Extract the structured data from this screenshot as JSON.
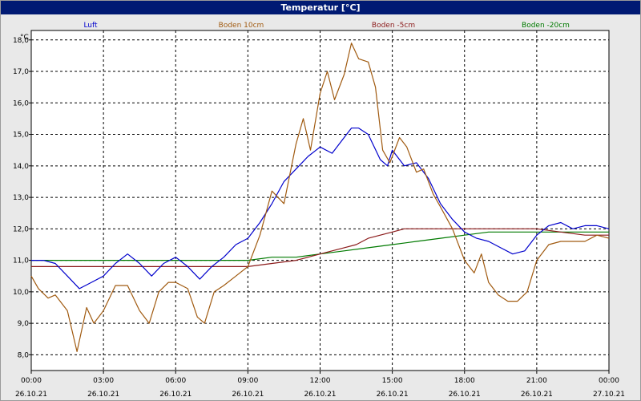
{
  "window": {
    "title": "Temperatur [°C]"
  },
  "chart_data": {
    "type": "line",
    "title": "Temperatur [°C]",
    "ylabel": "°C",
    "xlabel": "",
    "ylim": [
      7.5,
      18.3
    ],
    "xlim": [
      0,
      24
    ],
    "y_ticks": [
      "8,0",
      "9,0",
      "10,0",
      "11,0",
      "12,0",
      "13,0",
      "14,0",
      "15,0",
      "16,0",
      "17,0",
      "18,0"
    ],
    "y_tick_values": [
      8,
      9,
      10,
      11,
      12,
      13,
      14,
      15,
      16,
      17,
      18
    ],
    "x_tick_values": [
      0,
      3,
      6,
      9,
      12,
      15,
      18,
      21,
      24
    ],
    "x_ticks_time": [
      "00:00",
      "03:00",
      "06:00",
      "09:00",
      "12:00",
      "15:00",
      "18:00",
      "21:00",
      "00:00"
    ],
    "x_ticks_date": [
      "26.10.21",
      "26.10.21",
      "26.10.21",
      "26.10.21",
      "26.10.21",
      "26.10.21",
      "26.10.21",
      "26.10.21",
      "27.10.21"
    ],
    "grid": true,
    "legend_position": "top",
    "series": [
      {
        "name": "Luft",
        "color": "#0000cc",
        "x": [
          0,
          0.5,
          1,
          1.5,
          2,
          2.5,
          3,
          3.5,
          4,
          4.5,
          5,
          5.5,
          6,
          6.5,
          7,
          7.5,
          8,
          8.5,
          9,
          9.5,
          10,
          10.5,
          11,
          11.5,
          12,
          12.5,
          13,
          13.3,
          13.6,
          14,
          14.5,
          14.8,
          15,
          15.5,
          16,
          16.5,
          17,
          17.5,
          18,
          18.5,
          19,
          19.5,
          20,
          20.5,
          21,
          21.5,
          22,
          22.5,
          23,
          23.5,
          24
        ],
        "y": [
          11.0,
          11.0,
          10.9,
          10.5,
          10.1,
          10.3,
          10.5,
          10.9,
          11.2,
          10.9,
          10.5,
          10.9,
          11.1,
          10.8,
          10.4,
          10.8,
          11.1,
          11.5,
          11.7,
          12.2,
          12.8,
          13.5,
          13.9,
          14.3,
          14.6,
          14.4,
          14.9,
          15.2,
          15.2,
          15.0,
          14.2,
          14.0,
          14.5,
          14.0,
          14.1,
          13.6,
          12.8,
          12.3,
          11.9,
          11.7,
          11.6,
          11.4,
          11.2,
          11.3,
          11.8,
          12.1,
          12.2,
          12.0,
          12.1,
          12.1,
          12.0
        ]
      },
      {
        "name": "Boden 10cm",
        "color": "#a05a10",
        "x": [
          0,
          0.3,
          0.7,
          1,
          1.5,
          1.9,
          2.3,
          2.6,
          3,
          3.5,
          4,
          4.5,
          4.9,
          5.3,
          5.7,
          6,
          6.5,
          6.9,
          7.2,
          7.6,
          8,
          8.5,
          9,
          9.5,
          10,
          10.5,
          11,
          11.3,
          11.6,
          12,
          12.3,
          12.6,
          13,
          13.3,
          13.6,
          14,
          14.3,
          14.6,
          14.9,
          15.3,
          15.6,
          16,
          16.3,
          16.7,
          17,
          17.5,
          18,
          18.4,
          18.7,
          19,
          19.4,
          19.8,
          20.2,
          20.6,
          21,
          21.5,
          22,
          22.5,
          23,
          23.5,
          24
        ],
        "y": [
          10.5,
          10.1,
          9.8,
          9.9,
          9.4,
          8.1,
          9.5,
          9.0,
          9.4,
          10.2,
          10.2,
          9.4,
          9.0,
          10.0,
          10.3,
          10.3,
          10.1,
          9.2,
          9.0,
          10.0,
          10.2,
          10.5,
          10.8,
          11.8,
          13.2,
          12.8,
          14.7,
          15.5,
          14.5,
          16.3,
          17.0,
          16.1,
          16.9,
          17.9,
          17.4,
          17.3,
          16.5,
          14.5,
          14.1,
          14.9,
          14.6,
          13.8,
          13.9,
          13.1,
          12.7,
          12.0,
          11.0,
          10.6,
          11.2,
          10.3,
          9.9,
          9.7,
          9.7,
          10.0,
          11.0,
          11.5,
          11.6,
          11.6,
          11.6,
          11.8,
          11.7
        ]
      },
      {
        "name": "Boden -5cm",
        "color": "#8b1a1a",
        "x": [
          0,
          1,
          2,
          3,
          4,
          5,
          6,
          7,
          8,
          9,
          10,
          11,
          11.5,
          12,
          12.5,
          13,
          13.5,
          14,
          14.5,
          15,
          15.5,
          16,
          17,
          18,
          19,
          20,
          21,
          22,
          23,
          24
        ],
        "y": [
          10.8,
          10.8,
          10.8,
          10.8,
          10.8,
          10.8,
          10.8,
          10.8,
          10.8,
          10.8,
          10.9,
          11.0,
          11.1,
          11.2,
          11.3,
          11.4,
          11.5,
          11.7,
          11.8,
          11.9,
          12.0,
          12.0,
          12.0,
          12.0,
          12.0,
          12.0,
          12.0,
          11.9,
          11.8,
          11.8
        ]
      },
      {
        "name": "Boden -20cm",
        "color": "#007a00",
        "x": [
          0,
          1,
          2,
          3,
          4,
          5,
          6,
          7,
          8,
          9,
          10,
          11,
          12,
          13,
          14,
          15,
          16,
          17,
          18,
          19,
          20,
          21,
          22,
          23,
          24
        ],
        "y": [
          11.0,
          11.0,
          11.0,
          11.0,
          11.0,
          11.0,
          11.0,
          11.0,
          11.0,
          11.0,
          11.1,
          11.1,
          11.2,
          11.3,
          11.4,
          11.5,
          11.6,
          11.7,
          11.8,
          11.9,
          11.9,
          11.9,
          11.9,
          11.9,
          11.9
        ]
      }
    ]
  }
}
